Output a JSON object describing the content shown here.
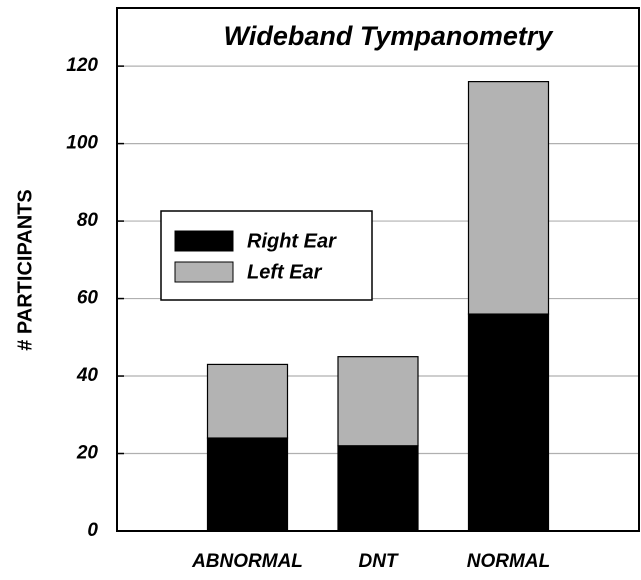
{
  "chart_data": {
    "type": "bar",
    "stacked": true,
    "title": "Wideband Tympanometry",
    "y_label": "# PARTICIPANTS",
    "categories": [
      "ABNORMAL",
      "DNT",
      "NORMAL"
    ],
    "series": [
      {
        "name": "Right Ear",
        "color": "#000000",
        "values": [
          24,
          22,
          56
        ]
      },
      {
        "name": "Left Ear",
        "color": "#b3b3b3",
        "values": [
          19,
          23,
          60
        ]
      }
    ],
    "ylim": [
      0,
      135
    ],
    "yticks": [
      0,
      20,
      40,
      60,
      80,
      100,
      120
    ],
    "grid": true,
    "legend": "center-left"
  }
}
